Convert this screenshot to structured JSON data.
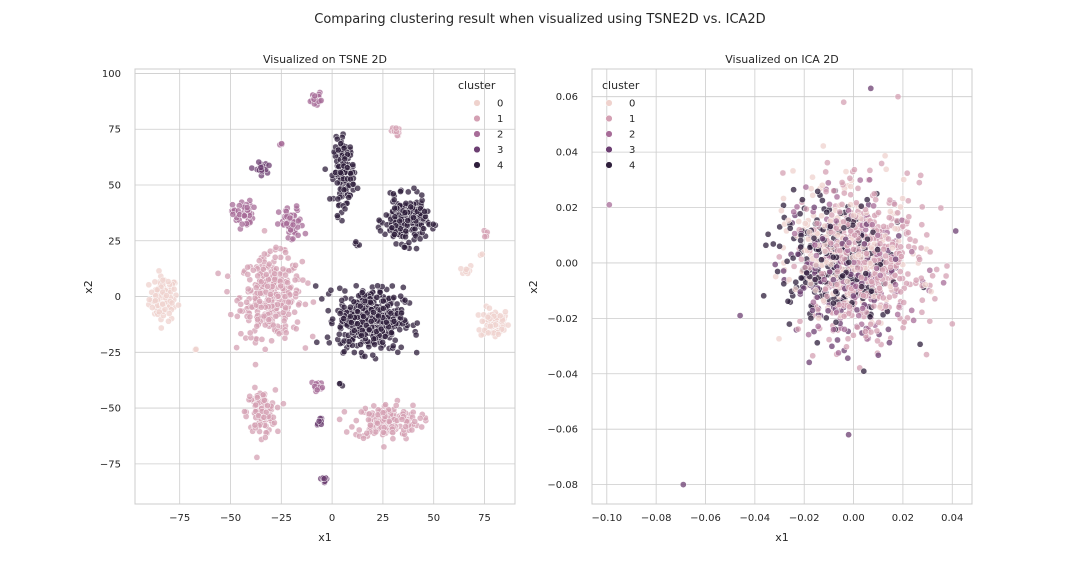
{
  "figure": {
    "title": "Comparing clustering result when visualized using TSNE2D vs. ICA2D"
  },
  "palette": {
    "0": "#efd2cd",
    "1": "#d4a0b3",
    "2": "#a76c98",
    "3": "#6c3f72",
    "4": "#2e1e3b",
    "grid": "#cccccc",
    "axes_edge": "#cccccc",
    "marker_edge": "#ffffff"
  },
  "chart_data": [
    {
      "type": "scatter",
      "title": "Visualized on TSNE 2D",
      "xlabel": "x1",
      "ylabel": "x2",
      "xlim": [
        -97,
        90
      ],
      "ylim": [
        -93,
        102
      ],
      "xticks": [
        -75,
        -50,
        -25,
        0,
        25,
        50,
        75
      ],
      "xtick_labels": [
        "−75",
        "−50",
        "−25",
        "0",
        "25",
        "50",
        "75"
      ],
      "yticks": [
        -75,
        -50,
        -25,
        0,
        25,
        50,
        75,
        100
      ],
      "ytick_labels": [
        "−75",
        "−50",
        "−25",
        "0",
        "25",
        "50",
        "75",
        "100"
      ],
      "grid": true,
      "legend": {
        "title": "cluster",
        "location": "upper right",
        "entries": [
          "0",
          "1",
          "2",
          "3",
          "4"
        ]
      },
      "clusters": [
        {
          "cluster": 0,
          "cx": -83,
          "cy": -1,
          "sx": 3.5,
          "sy": 5,
          "n": 90
        },
        {
          "cluster": 0,
          "cx": 80,
          "cy": -12,
          "sx": 3.5,
          "sy": 3.5,
          "n": 70
        },
        {
          "cluster": 0,
          "cx": 66,
          "cy": 12,
          "sx": 1.5,
          "sy": 1.2,
          "n": 10
        },
        {
          "cluster": 0,
          "cx": 73,
          "cy": 19,
          "sx": 0.5,
          "sy": 0.5,
          "n": 2
        },
        {
          "cluster": 0,
          "cx": -67,
          "cy": -24,
          "sx": 0.6,
          "sy": 0.6,
          "n": 3
        },
        {
          "cluster": 1,
          "cx": -30,
          "cy": 0,
          "sx": 7.5,
          "sy": 9,
          "n": 330
        },
        {
          "cluster": 1,
          "cx": -35,
          "cy": -52,
          "sx": 3.5,
          "sy": 5,
          "n": 110
        },
        {
          "cluster": 1,
          "cx": 27,
          "cy": -56,
          "sx": 8,
          "sy": 4,
          "n": 160
        },
        {
          "cluster": 1,
          "cx": 31,
          "cy": 74,
          "sx": 1,
          "sy": 1,
          "n": 14
        },
        {
          "cluster": 1,
          "cx": 76,
          "cy": 28,
          "sx": 0.7,
          "sy": 0.8,
          "n": 7
        },
        {
          "cluster": 2,
          "cx": -44,
          "cy": 37,
          "sx": 2.5,
          "sy": 3,
          "n": 50
        },
        {
          "cluster": 2,
          "cx": -20,
          "cy": 32,
          "sx": 3,
          "sy": 4,
          "n": 60
        },
        {
          "cluster": 2,
          "cx": -8,
          "cy": 89,
          "sx": 1.2,
          "sy": 1.2,
          "n": 26
        },
        {
          "cluster": 2,
          "cx": -25,
          "cy": 68,
          "sx": 0.4,
          "sy": 0.4,
          "n": 3
        },
        {
          "cluster": 2,
          "cx": -7,
          "cy": -40,
          "sx": 1.5,
          "sy": 1.2,
          "n": 14
        },
        {
          "cluster": 3,
          "cx": -6,
          "cy": -56,
          "sx": 0.8,
          "sy": 0.8,
          "n": 8
        },
        {
          "cluster": 3,
          "cx": -4,
          "cy": -82,
          "sx": 0.8,
          "sy": 0.8,
          "n": 10
        },
        {
          "cluster": 3,
          "cx": -35,
          "cy": 57,
          "sx": 1.5,
          "sy": 1.5,
          "n": 22
        },
        {
          "cluster": 4,
          "cx": 6,
          "cy": 56,
          "sx": 2.5,
          "sy": 7,
          "n": 160
        },
        {
          "cluster": 4,
          "cx": 36,
          "cy": 34,
          "sx": 5,
          "sy": 5,
          "n": 260
        },
        {
          "cluster": 4,
          "cx": 19,
          "cy": -10,
          "sx": 8,
          "sy": 7,
          "n": 460
        },
        {
          "cluster": 4,
          "cx": 12,
          "cy": 23,
          "sx": 0.6,
          "sy": 0.6,
          "n": 4
        },
        {
          "cluster": 4,
          "cx": 4,
          "cy": -39,
          "sx": 0.6,
          "sy": 0.6,
          "n": 3
        }
      ]
    },
    {
      "type": "scatter",
      "title": "Visualized on ICA 2D",
      "xlabel": "x1",
      "ylabel": "x2",
      "xlim": [
        -0.106,
        0.048
      ],
      "ylim": [
        -0.087,
        0.07
      ],
      "xticks": [
        -0.1,
        -0.08,
        -0.06,
        -0.04,
        -0.02,
        0.0,
        0.02,
        0.04
      ],
      "xtick_labels": [
        "−0.10",
        "−0.08",
        "−0.06",
        "−0.04",
        "−0.02",
        "0.00",
        "0.02",
        "0.04"
      ],
      "yticks": [
        -0.08,
        -0.06,
        -0.04,
        -0.02,
        0.0,
        0.02,
        0.04,
        0.06
      ],
      "ytick_labels": [
        "−0.08",
        "−0.06",
        "−0.04",
        "−0.02",
        "0.00",
        "0.02",
        "0.04",
        "0.06"
      ],
      "grid": true,
      "legend": {
        "title": "cluster",
        "location": "upper left",
        "entries": [
          "0",
          "1",
          "2",
          "3",
          "4"
        ]
      },
      "clusters": [
        {
          "cluster": 4,
          "cx": -0.008,
          "cy": -0.002,
          "sx": 0.011,
          "sy": 0.012,
          "n": 230
        },
        {
          "cluster": 3,
          "cx": -0.004,
          "cy": -0.005,
          "sx": 0.012,
          "sy": 0.013,
          "n": 110
        },
        {
          "cluster": 2,
          "cx": 0.003,
          "cy": -0.002,
          "sx": 0.012,
          "sy": 0.014,
          "n": 130
        },
        {
          "cluster": 0,
          "cx": -0.003,
          "cy": 0.006,
          "sx": 0.012,
          "sy": 0.012,
          "n": 230
        },
        {
          "cluster": 1,
          "cx": 0.004,
          "cy": 0.0,
          "sx": 0.012,
          "sy": 0.013,
          "n": 430
        }
      ],
      "outliers": [
        {
          "cluster": 3,
          "x": -0.069,
          "y": -0.08
        },
        {
          "cluster": 2,
          "x": -0.099,
          "y": 0.021
        },
        {
          "cluster": 3,
          "x": 0.007,
          "y": 0.063
        },
        {
          "cluster": 1,
          "x": 0.018,
          "y": 0.06
        },
        {
          "cluster": 1,
          "x": 0.04,
          "y": -0.022
        },
        {
          "cluster": 3,
          "x": -0.002,
          "y": -0.062
        },
        {
          "cluster": 3,
          "x": -0.046,
          "y": -0.019
        },
        {
          "cluster": 1,
          "x": -0.004,
          "y": 0.058
        }
      ]
    }
  ]
}
